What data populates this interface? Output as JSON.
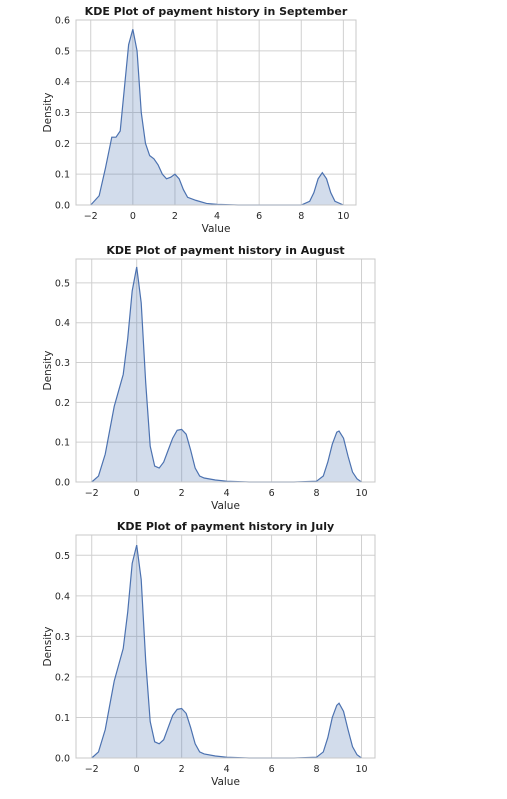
{
  "chart_data": [
    {
      "type": "area",
      "title": "KDE Plot of payment history in September",
      "xlabel": "Value",
      "ylabel": "Density",
      "xlim": [
        -2.7,
        10.6
      ],
      "ylim": [
        0,
        0.6
      ],
      "xticks": [
        -2,
        0,
        2,
        4,
        6,
        8,
        10
      ],
      "yticks": [
        0.0,
        0.1,
        0.2,
        0.3,
        0.4,
        0.5,
        0.6
      ],
      "grid": true,
      "series": [
        {
          "x": [
            -2.0,
            -1.6,
            -1.3,
            -1.0,
            -0.8,
            -0.6,
            -0.4,
            -0.2,
            0.0,
            0.2,
            0.4,
            0.6,
            0.8,
            1.0,
            1.2,
            1.4,
            1.6,
            1.8,
            2.0,
            2.2,
            2.4,
            2.6,
            3.0,
            3.5,
            4.0,
            5.0,
            6.0,
            7.0,
            8.0,
            8.4,
            8.6,
            8.8,
            9.0,
            9.2,
            9.4,
            9.6,
            10.0
          ],
          "y": [
            0.0,
            0.03,
            0.12,
            0.22,
            0.22,
            0.24,
            0.38,
            0.52,
            0.57,
            0.5,
            0.3,
            0.2,
            0.16,
            0.15,
            0.13,
            0.1,
            0.085,
            0.09,
            0.1,
            0.085,
            0.05,
            0.025,
            0.015,
            0.005,
            0.002,
            0.0,
            0.0,
            0.0,
            0.0,
            0.012,
            0.04,
            0.085,
            0.105,
            0.085,
            0.04,
            0.012,
            0.0
          ]
        }
      ]
    },
    {
      "type": "area",
      "title": "KDE Plot of payment history in August",
      "xlabel": "Value",
      "ylabel": "Density",
      "xlim": [
        -2.7,
        10.6
      ],
      "ylim": [
        0,
        0.56
      ],
      "xticks": [
        -2,
        0,
        2,
        4,
        6,
        8,
        10
      ],
      "yticks": [
        0.0,
        0.1,
        0.2,
        0.3,
        0.4,
        0.5
      ],
      "grid": true,
      "series": [
        {
          "x": [
            -2.0,
            -1.7,
            -1.4,
            -1.2,
            -1.0,
            -0.8,
            -0.6,
            -0.4,
            -0.2,
            0.0,
            0.2,
            0.4,
            0.6,
            0.8,
            1.0,
            1.2,
            1.4,
            1.6,
            1.8,
            2.0,
            2.2,
            2.4,
            2.6,
            2.8,
            3.0,
            3.5,
            4.0,
            5.0,
            6.0,
            7.0,
            8.0,
            8.3,
            8.5,
            8.7,
            8.9,
            9.0,
            9.2,
            9.4,
            9.6,
            9.8,
            10.0
          ],
          "y": [
            0.0,
            0.015,
            0.07,
            0.13,
            0.19,
            0.23,
            0.27,
            0.36,
            0.48,
            0.54,
            0.45,
            0.25,
            0.09,
            0.04,
            0.035,
            0.05,
            0.08,
            0.11,
            0.13,
            0.132,
            0.12,
            0.08,
            0.035,
            0.015,
            0.01,
            0.005,
            0.002,
            0.0,
            0.0,
            0.0,
            0.002,
            0.015,
            0.05,
            0.095,
            0.125,
            0.128,
            0.11,
            0.065,
            0.025,
            0.008,
            0.0
          ]
        }
      ]
    },
    {
      "type": "area",
      "title": "KDE Plot of payment history in July",
      "xlabel": "Value",
      "ylabel": "Density",
      "xlim": [
        -2.7,
        10.6
      ],
      "ylim": [
        0,
        0.55
      ],
      "xticks": [
        -2,
        0,
        2,
        4,
        6,
        8,
        10
      ],
      "yticks": [
        0.0,
        0.1,
        0.2,
        0.3,
        0.4,
        0.5
      ],
      "grid": true,
      "series": [
        {
          "x": [
            -2.0,
            -1.7,
            -1.4,
            -1.2,
            -1.0,
            -0.8,
            -0.6,
            -0.4,
            -0.2,
            0.0,
            0.2,
            0.4,
            0.6,
            0.8,
            1.0,
            1.2,
            1.4,
            1.6,
            1.8,
            2.0,
            2.2,
            2.4,
            2.6,
            2.8,
            3.0,
            3.5,
            4.0,
            5.0,
            6.0,
            7.0,
            8.0,
            8.3,
            8.5,
            8.7,
            8.9,
            9.0,
            9.2,
            9.4,
            9.6,
            9.8,
            10.0
          ],
          "y": [
            0.0,
            0.015,
            0.07,
            0.13,
            0.19,
            0.23,
            0.27,
            0.36,
            0.48,
            0.525,
            0.44,
            0.24,
            0.09,
            0.04,
            0.035,
            0.045,
            0.075,
            0.105,
            0.12,
            0.122,
            0.11,
            0.075,
            0.035,
            0.015,
            0.01,
            0.005,
            0.002,
            0.0,
            0.0,
            0.0,
            0.002,
            0.015,
            0.05,
            0.1,
            0.13,
            0.135,
            0.115,
            0.07,
            0.028,
            0.008,
            0.0
          ]
        }
      ]
    }
  ]
}
